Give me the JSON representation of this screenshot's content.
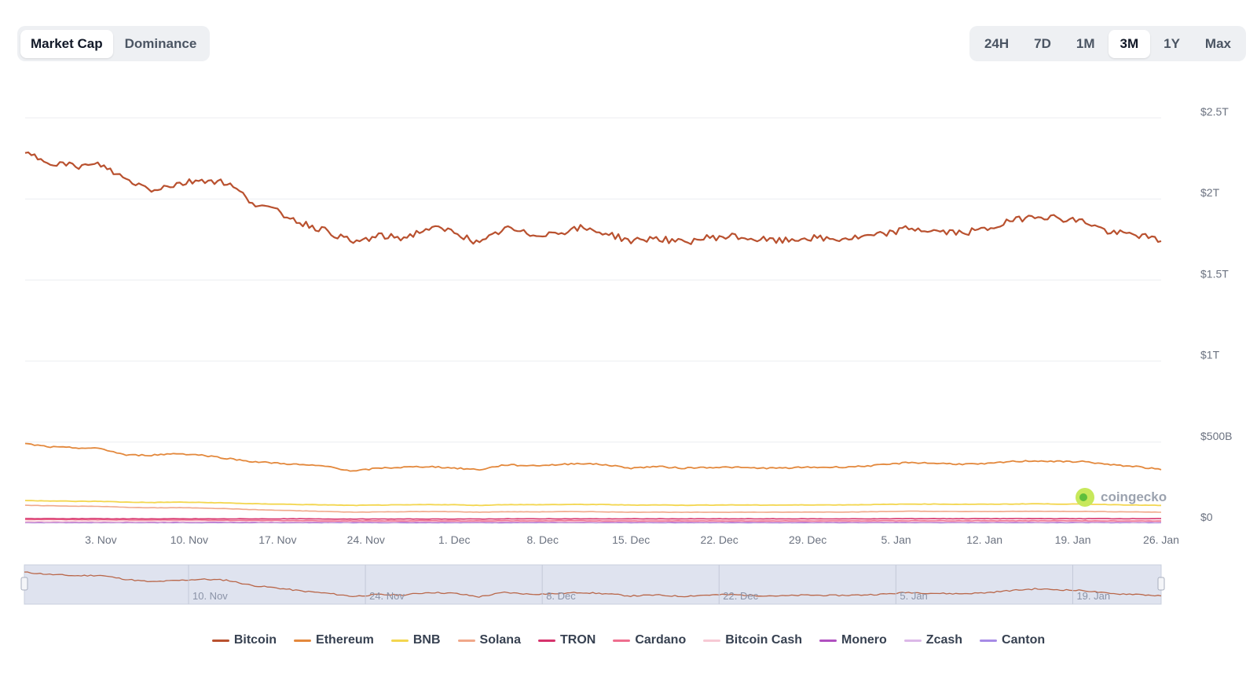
{
  "tabs": {
    "metric": [
      {
        "label": "Market Cap",
        "active": true
      },
      {
        "label": "Dominance",
        "active": false
      }
    ],
    "range": [
      {
        "label": "24H",
        "active": false
      },
      {
        "label": "7D",
        "active": false
      },
      {
        "label": "1M",
        "active": false
      },
      {
        "label": "3M",
        "active": true
      },
      {
        "label": "1Y",
        "active": false
      },
      {
        "label": "Max",
        "active": false
      }
    ]
  },
  "watermark": {
    "text": "coingecko",
    "icon": "gecko-logo-icon"
  },
  "colors": {
    "grid": "#eceef1",
    "navigator_bg": "#dfe3ef",
    "axis_text": "#6b7280"
  },
  "chart_data": {
    "type": "line",
    "y_ticks": [
      {
        "value": 0,
        "label": "$0"
      },
      {
        "value": 500,
        "label": "$500B"
      },
      {
        "value": 1000,
        "label": "$1T"
      },
      {
        "value": 1500,
        "label": "$1.5T"
      },
      {
        "value": 2000,
        "label": "$2T"
      },
      {
        "value": 2500,
        "label": "$2.5T"
      }
    ],
    "ylim": [
      0,
      2500
    ],
    "x_ticks": [
      "3. Nov",
      "10. Nov",
      "17. Nov",
      "24. Nov",
      "1. Dec",
      "8. Dec",
      "15. Dec",
      "22. Dec",
      "29. Dec",
      "5. Jan",
      "12. Jan",
      "19. Jan",
      "26. Jan"
    ],
    "navigator_ticks": [
      "10. Nov",
      "24. Nov",
      "8. Dec",
      "22. Dec",
      "5. Jan",
      "19. Jan"
    ],
    "x_start": "2025-10-28",
    "x_end": "2026-01-26",
    "x_tick_dates": [
      "2025-11-03",
      "2025-11-10",
      "2025-11-17",
      "2025-11-24",
      "2025-12-01",
      "2025-12-08",
      "2025-12-15",
      "2025-12-22",
      "2025-12-29",
      "2026-01-05",
      "2026-01-12",
      "2026-01-19",
      "2026-01-26"
    ],
    "navigator_tick_dates": [
      "2025-11-10",
      "2025-11-24",
      "2025-12-08",
      "2025-12-22",
      "2026-01-05",
      "2026-01-19"
    ],
    "dates": [
      "2025-10-28",
      "2025-10-30",
      "2025-11-01",
      "2025-11-03",
      "2025-11-05",
      "2025-11-07",
      "2025-11-09",
      "2025-11-11",
      "2025-11-13",
      "2025-11-15",
      "2025-11-17",
      "2025-11-19",
      "2025-11-21",
      "2025-11-23",
      "2025-11-25",
      "2025-11-27",
      "2025-11-29",
      "2025-12-01",
      "2025-12-03",
      "2025-12-05",
      "2025-12-07",
      "2025-12-09",
      "2025-12-11",
      "2025-12-13",
      "2025-12-15",
      "2025-12-17",
      "2025-12-19",
      "2025-12-21",
      "2025-12-23",
      "2025-12-25",
      "2025-12-27",
      "2025-12-29",
      "2025-12-31",
      "2026-01-02",
      "2026-01-04",
      "2026-01-06",
      "2026-01-08",
      "2026-01-10",
      "2026-01-12",
      "2026-01-14",
      "2026-01-16",
      "2026-01-18",
      "2026-01-20",
      "2026-01-22",
      "2026-01-24",
      "2026-01-26"
    ],
    "series": [
      {
        "name": "Bitcoin",
        "color": "#b9512f",
        "width": 2.2,
        "values": [
          2280,
          2230,
          2200,
          2210,
          2120,
          2060,
          2090,
          2120,
          2100,
          1980,
          1920,
          1850,
          1800,
          1730,
          1770,
          1760,
          1820,
          1800,
          1720,
          1820,
          1780,
          1790,
          1820,
          1790,
          1740,
          1760,
          1730,
          1760,
          1770,
          1750,
          1740,
          1760,
          1750,
          1760,
          1780,
          1820,
          1800,
          1790,
          1810,
          1860,
          1900,
          1880,
          1860,
          1790,
          1780,
          1740
        ]
      },
      {
        "name": "Ethereum",
        "color": "#e3883c",
        "width": 1.8,
        "values": [
          490,
          470,
          465,
          460,
          420,
          420,
          430,
          420,
          400,
          380,
          370,
          360,
          350,
          320,
          340,
          345,
          350,
          340,
          330,
          360,
          355,
          360,
          370,
          360,
          340,
          350,
          340,
          345,
          345,
          340,
          340,
          345,
          345,
          350,
          360,
          375,
          370,
          365,
          365,
          380,
          385,
          380,
          380,
          360,
          350,
          330
        ]
      },
      {
        "name": "BNB",
        "color": "#f3d64f",
        "width": 1.8,
        "values": [
          140,
          138,
          135,
          135,
          130,
          128,
          130,
          128,
          125,
          120,
          118,
          115,
          113,
          110,
          112,
          113,
          115,
          114,
          110,
          115,
          114,
          115,
          116,
          115,
          112,
          113,
          111,
          112,
          113,
          112,
          112,
          113,
          113,
          114,
          116,
          118,
          118,
          117,
          117,
          118,
          120,
          118,
          118,
          115,
          112,
          110
        ]
      },
      {
        "name": "Solana",
        "color": "#f0a88a",
        "width": 1.6,
        "values": [
          110,
          108,
          105,
          104,
          98,
          95,
          96,
          94,
          90,
          84,
          80,
          76,
          72,
          68,
          70,
          71,
          72,
          71,
          68,
          71,
          70,
          71,
          72,
          70,
          68,
          69,
          67,
          68,
          68,
          68,
          68,
          69,
          69,
          70,
          72,
          74,
          73,
          72,
          72,
          73,
          74,
          73,
          73,
          71,
          70,
          68
        ]
      },
      {
        "name": "TRON",
        "color": "#d6336c",
        "width": 1.6,
        "values": [
          28,
          28,
          28,
          28,
          27,
          27,
          27,
          27,
          27,
          27,
          27,
          27,
          26,
          26,
          26,
          26,
          26,
          26,
          26,
          27,
          27,
          27,
          27,
          27,
          27,
          27,
          27,
          27,
          27,
          27,
          27,
          27,
          27,
          27,
          27,
          28,
          28,
          28,
          28,
          28,
          28,
          28,
          28,
          28,
          28,
          28
        ]
      },
      {
        "name": "Cardano",
        "color": "#ee6e8e",
        "width": 1.4,
        "values": [
          22,
          22,
          21,
          21,
          20,
          19,
          20,
          19,
          18,
          17,
          17,
          16,
          15,
          15,
          15,
          15,
          16,
          15,
          15,
          16,
          15,
          16,
          16,
          15,
          15,
          15,
          15,
          15,
          15,
          15,
          15,
          15,
          15,
          15,
          16,
          16,
          16,
          16,
          16,
          16,
          16,
          16,
          16,
          15,
          15,
          15
        ]
      },
      {
        "name": "Bitcoin Cash",
        "color": "#f7c9d4",
        "width": 1.2,
        "values": [
          10,
          10,
          10,
          10,
          10,
          10,
          10,
          10,
          10,
          10,
          10,
          10,
          10,
          10,
          10,
          10,
          10,
          10,
          10,
          10,
          10,
          10,
          10,
          10,
          10,
          10,
          10,
          10,
          10,
          10,
          10,
          10,
          10,
          10,
          10,
          10,
          10,
          10,
          10,
          10,
          10,
          10,
          10,
          10,
          10,
          10
        ]
      },
      {
        "name": "Monero",
        "color": "#b050c0",
        "width": 1.2,
        "values": [
          7,
          7,
          7,
          7,
          7,
          7,
          7,
          7,
          7,
          7,
          7,
          7,
          7,
          7,
          7,
          7,
          7,
          7,
          7,
          7,
          7,
          7,
          7,
          7,
          7,
          7,
          7,
          7,
          7,
          7,
          7,
          7,
          7,
          7,
          7,
          7,
          8,
          8,
          8,
          8,
          8,
          8,
          8,
          8,
          8,
          8
        ]
      },
      {
        "name": "Zcash",
        "color": "#dcb8e8",
        "width": 1.2,
        "values": [
          5,
          5,
          5,
          5,
          5,
          5,
          6,
          6,
          6,
          6,
          6,
          6,
          6,
          6,
          6,
          6,
          6,
          6,
          6,
          6,
          6,
          6,
          6,
          6,
          6,
          6,
          6,
          6,
          6,
          6,
          6,
          6,
          6,
          6,
          6,
          6,
          6,
          6,
          6,
          6,
          6,
          6,
          6,
          6,
          6,
          6
        ]
      },
      {
        "name": "Canton",
        "color": "#a78be6",
        "width": 1.2,
        "values": [
          3,
          3,
          3,
          3,
          3,
          3,
          3,
          3,
          3,
          3,
          3,
          3,
          3,
          3,
          3,
          3,
          3,
          3,
          3,
          3,
          3,
          3,
          3,
          3,
          3,
          3,
          3,
          3,
          3,
          3,
          3,
          3,
          3,
          3,
          3,
          3,
          3,
          3,
          3,
          3,
          3,
          3,
          3,
          3,
          3,
          3
        ]
      }
    ],
    "legend_position": "bottom",
    "y_axis_side": "right",
    "grid": true
  }
}
